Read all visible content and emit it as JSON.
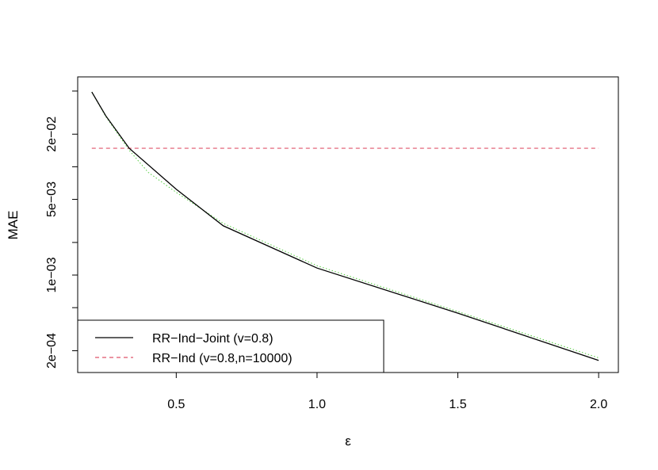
{
  "chart_data": {
    "type": "line",
    "xlabel": "ε",
    "ylabel": "MAE",
    "xlim": [
      0.15,
      2.07
    ],
    "ylim_log10": [
      -3.9,
      -1.17
    ],
    "y_scale": "log",
    "grid": false,
    "legend_position": "bottom-left",
    "x_ticks": [
      0.5,
      1.0,
      1.5,
      2.0
    ],
    "x_tick_labels": [
      "0.5",
      "1.0",
      "1.5",
      "2.0"
    ],
    "y_ticks": [
      0.0002,
      0.0005,
      0.001,
      0.002,
      0.005,
      0.01,
      0.02,
      0.05
    ],
    "y_tick_labels": [
      "2e−04",
      "",
      "1e−03",
      "",
      "5e−03",
      "",
      "2e−02",
      ""
    ],
    "series": [
      {
        "name": "RR−Ind−Joint (v=0.8)",
        "color": "#000000",
        "dash": "solid",
        "x": [
          0.2,
          0.25,
          0.333,
          0.5,
          0.667,
          1.0,
          1.5,
          2.0
        ],
        "y": [
          0.049,
          0.0295,
          0.0148,
          0.0062,
          0.00285,
          0.00116,
          0.000445,
          0.000163
        ]
      },
      {
        "name": "RR−Ind (v=0.8,n=10000)",
        "color": "#DF536B",
        "dash": "dashed",
        "x": [
          0.2,
          2.0
        ],
        "y": [
          0.0148,
          0.0148
        ]
      },
      {
        "name": "",
        "color": "#61D04F",
        "dash": "dotted",
        "x": [
          0.2,
          0.25,
          0.333,
          0.4,
          0.5,
          0.667,
          1.0,
          1.5,
          2.0
        ],
        "y": [
          0.049,
          0.029,
          0.0142,
          0.0089,
          0.0058,
          0.003,
          0.00122,
          0.00046,
          0.000172
        ]
      }
    ]
  }
}
